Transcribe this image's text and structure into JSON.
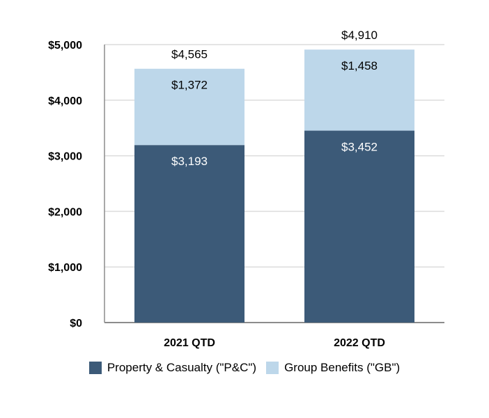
{
  "chart_data": {
    "type": "bar",
    "stacked": true,
    "categories": [
      "2021 QTD",
      "2022 QTD"
    ],
    "series": [
      {
        "name": "Property & Casualty (\"P&C\")",
        "values": [
          3193,
          3452
        ],
        "color": "#3c5a78",
        "labels": [
          "$3,193",
          "$3,452"
        ],
        "label_color": "#ffffff"
      },
      {
        "name": "Group Benefits (\"GB\")",
        "values": [
          1372,
          1458
        ],
        "color": "#bdd7ea",
        "labels": [
          "$1,372",
          "$1,458"
        ],
        "label_color": "#000000"
      }
    ],
    "totals": [
      4565,
      4910
    ],
    "total_labels": [
      "$4,565",
      "$4,910"
    ],
    "y_ticks": [
      0,
      1000,
      2000,
      3000,
      4000,
      5000
    ],
    "y_tick_labels": [
      "$0",
      "$1,000",
      "$2,000",
      "$3,000",
      "$4,000",
      "$5,000"
    ],
    "ylim": [
      0,
      5000
    ],
    "grid": true,
    "legend_position": "bottom",
    "title": "",
    "xlabel": "",
    "ylabel": ""
  },
  "legend": {
    "pc_label": "Property & Casualty (\"P&C\")",
    "gb_label": "Group Benefits (\"GB\")",
    "pc_color": "#3c5a78",
    "gb_color": "#bdd7ea"
  }
}
